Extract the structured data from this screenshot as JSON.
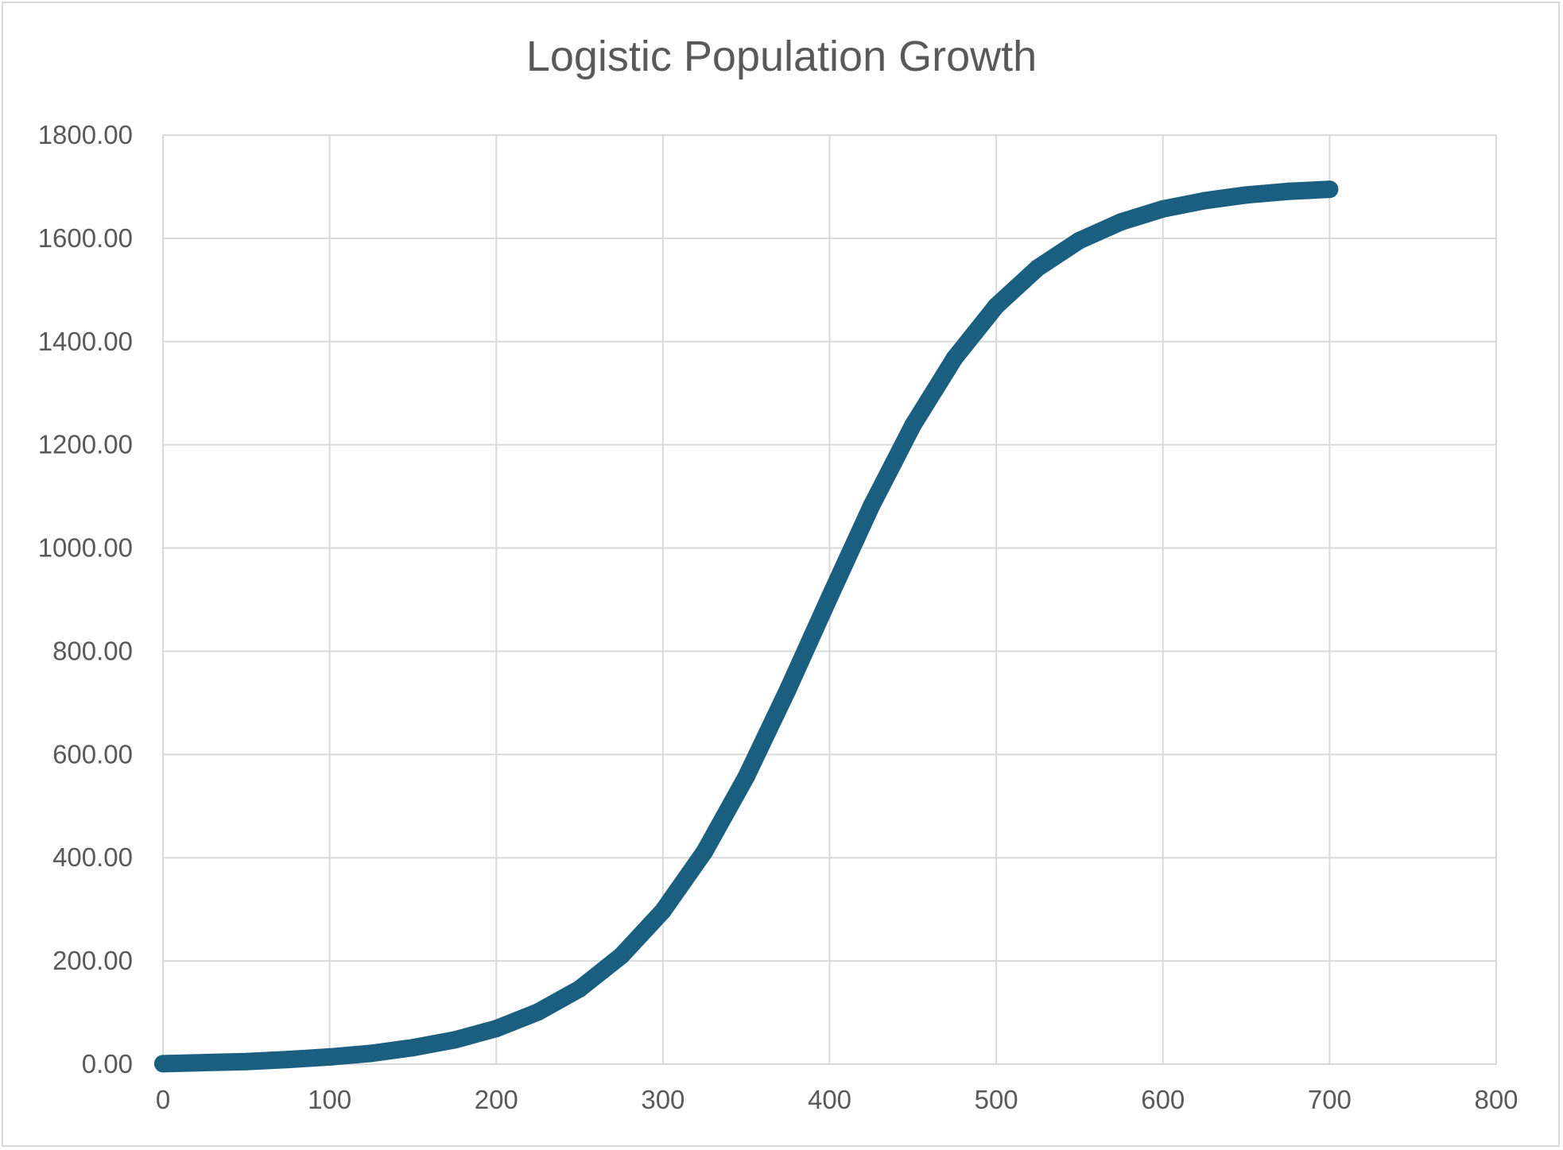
{
  "chart_data": {
    "type": "scatter",
    "title": "Logistic Population Growth",
    "xlabel": "",
    "ylabel": "",
    "xlim": [
      0,
      800
    ],
    "ylim": [
      0,
      1800
    ],
    "x_ticks": [
      "0",
      "100",
      "200",
      "300",
      "400",
      "500",
      "600",
      "700",
      "800"
    ],
    "y_ticks": [
      "0.00",
      "200.00",
      "400.00",
      "600.00",
      "800.00",
      "1000.00",
      "1200.00",
      "1400.00",
      "1600.00",
      "1800.00"
    ],
    "grid": true,
    "legend": "none",
    "series_color": "#1a5e80",
    "series": [
      {
        "x": [
          0,
          25,
          50,
          75,
          100,
          125,
          150,
          175,
          200,
          225,
          250,
          275,
          300,
          325,
          350,
          375,
          400,
          425,
          450,
          475,
          500,
          525,
          550,
          575,
          600,
          625,
          650,
          675,
          700
        ],
        "y": [
          1,
          3,
          5,
          9,
          14,
          21,
          32,
          47,
          69,
          101,
          146,
          210,
          297,
          412,
          557,
          726,
          905,
          1081,
          1238,
          1368,
          1469,
          1543,
          1596,
          1632,
          1657,
          1673,
          1684,
          1691,
          1695
        ]
      }
    ]
  }
}
